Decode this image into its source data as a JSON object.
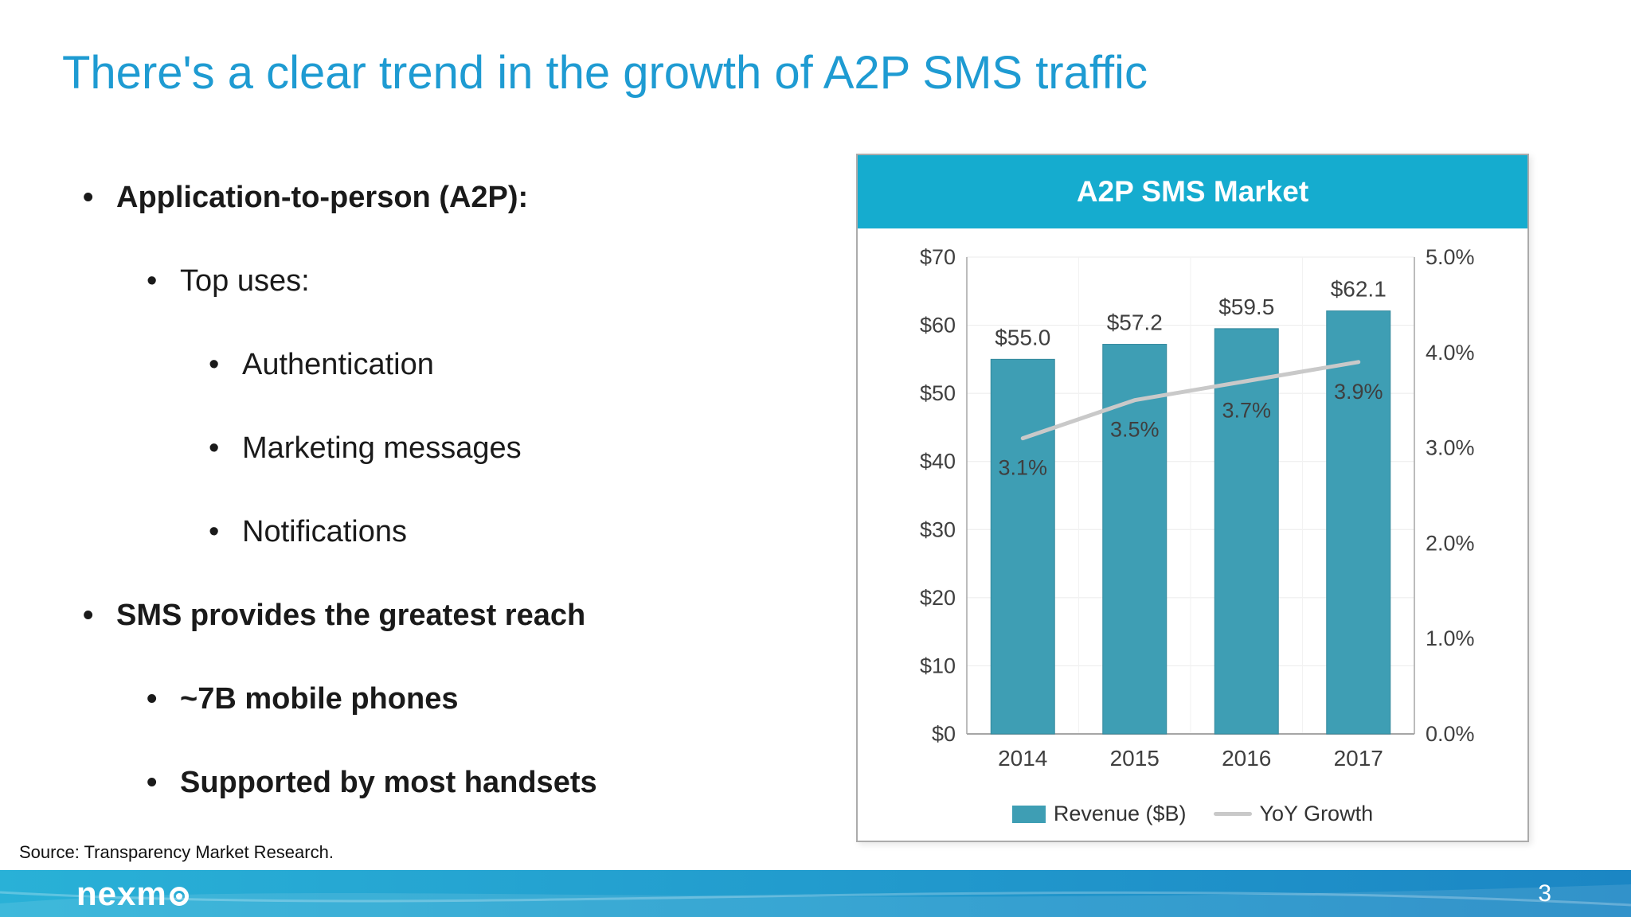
{
  "slide": {
    "title": "There's a clear trend in the growth of A2P SMS traffic",
    "bullet_char": "•",
    "bullets": [
      {
        "level": 1,
        "text": "Application-to-person (A2P):",
        "bold": true
      },
      {
        "level": 2,
        "text": "Top uses:",
        "bold": false
      },
      {
        "level": 3,
        "text": "Authentication",
        "bold": false
      },
      {
        "level": 3,
        "text": "Marketing messages",
        "bold": false
      },
      {
        "level": 3,
        "text": "Notifications",
        "bold": false
      },
      {
        "level": 1,
        "text": "SMS provides the greatest reach",
        "bold": true
      },
      {
        "level": 2,
        "text": "~7B mobile phones",
        "bold": true
      },
      {
        "level": 2,
        "text": "Supported by most handsets",
        "bold": true
      }
    ],
    "source": "Source: Transparency Market Research.",
    "footer": {
      "logo": "nexmo",
      "page_number": "3"
    }
  },
  "chart_data": {
    "type": "bar",
    "title": "A2P SMS Market",
    "categories": [
      "2014",
      "2015",
      "2016",
      "2017"
    ],
    "series": [
      {
        "name": "Revenue ($B)",
        "type": "bar",
        "axis": "left",
        "values": [
          55.0,
          57.2,
          59.5,
          62.1
        ],
        "data_labels": [
          "$55.0",
          "$57.2",
          "$59.5",
          "$62.1"
        ]
      },
      {
        "name": "YoY Growth",
        "type": "line",
        "axis": "right",
        "values": [
          3.1,
          3.5,
          3.7,
          3.9
        ],
        "data_labels": [
          "3.1%",
          "3.5%",
          "3.7%",
          "3.9%"
        ]
      }
    ],
    "left_axis": {
      "min": 0,
      "max": 70,
      "tick_step": 10,
      "tick_labels": [
        "$0",
        "$10",
        "$20",
        "$30",
        "$40",
        "$50",
        "$60",
        "$70"
      ]
    },
    "right_axis": {
      "min": 0,
      "max": 5,
      "tick_step": 1,
      "tick_labels": [
        "0.0%",
        "1.0%",
        "2.0%",
        "3.0%",
        "4.0%",
        "5.0%"
      ]
    },
    "legend_position": "bottom",
    "grid": true
  },
  "colors": {
    "title_blue": "#1E9BD2",
    "chart_header_teal": "#15ACCF",
    "bar_teal": "#3E9EB4",
    "bar_edge": "#35899D",
    "line_gray": "#C9C9C9",
    "footer_teal": "#29B1D7",
    "footer_blue": "#1B86C4",
    "label_dark": "#3F3F3F"
  }
}
